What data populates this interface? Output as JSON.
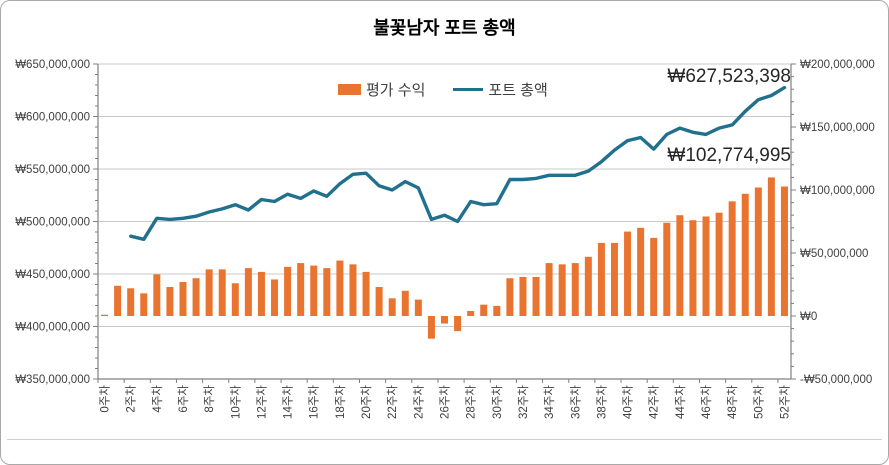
{
  "window": {
    "title": "불꽃남자 포트 총액"
  },
  "chart_data": {
    "type": "combo",
    "title": "불꽃남자 포트 총액",
    "legend": {
      "position": "top-inside",
      "entries": [
        "평가 수익",
        "포트 총액"
      ]
    },
    "colors": {
      "bar": "#E97430",
      "line": "#21708E",
      "gridline": "#c8c8c8",
      "axis": "#808080",
      "tick_label": "#404040"
    },
    "x_unit": "주차",
    "weeks": "0-52",
    "x_tick_labels": [
      "0주차",
      "2주차",
      "4주차",
      "6주차",
      "8주차",
      "10주차",
      "12주차",
      "14주차",
      "16주차",
      "18주차",
      "20주차",
      "22주차",
      "24주차",
      "26주차",
      "28주차",
      "30주차",
      "32주차",
      "34주차",
      "36주차",
      "38주차",
      "40주차",
      "42주차",
      "44주차",
      "46주차",
      "48주차",
      "50주차",
      "52주차"
    ],
    "left_axis": {
      "min": 350000000,
      "max": 650000000,
      "step": 50000000,
      "labels": [
        "₩350,000,000",
        "₩400,000,000",
        "₩450,000,000",
        "₩500,000,000",
        "₩550,000,000",
        "₩600,000,000",
        "₩650,000,000"
      ]
    },
    "right_axis": {
      "min": -50000000,
      "max": 200000000,
      "step": 50000000,
      "labels": [
        "-₩50,000,000",
        "₩0",
        "₩50,000,000",
        "₩100,000,000",
        "₩150,000,000",
        "₩200,000,000"
      ]
    },
    "series": [
      {
        "name": "평가 수익",
        "type": "bar",
        "axis": "right",
        "start_week": 0,
        "values": [
          1000000,
          24000000,
          22000000,
          18000000,
          33000000,
          23000000,
          27000000,
          30000000,
          37000000,
          37000000,
          26000000,
          38000000,
          35000000,
          29000000,
          39000000,
          42000000,
          40000000,
          38000000,
          44000000,
          41000000,
          35000000,
          23000000,
          14000000,
          20000000,
          13000000,
          -18000000,
          -6000000,
          -12000000,
          4000000,
          9000000,
          8000000,
          30000000,
          31000000,
          31000000,
          42000000,
          41000000,
          42000000,
          47000000,
          58000000,
          58000000,
          67000000,
          70000000,
          62000000,
          74000000,
          80000000,
          76000000,
          79000000,
          82000000,
          91000000,
          97000000,
          102000000,
          110000000,
          102774995
        ]
      },
      {
        "name": "포트 총액",
        "type": "line",
        "axis": "left",
        "start_week": 2,
        "values": [
          486000000,
          483000000,
          503000000,
          502000000,
          503000000,
          505000000,
          509000000,
          512000000,
          516000000,
          511000000,
          521000000,
          519000000,
          526000000,
          522000000,
          529000000,
          524000000,
          536000000,
          545000000,
          546000000,
          534000000,
          530000000,
          538000000,
          532000000,
          502000000,
          506000000,
          500000000,
          519000000,
          516000000,
          517000000,
          540000000,
          540000000,
          541000000,
          544000000,
          544000000,
          544000000,
          548000000,
          557000000,
          568000000,
          577000000,
          580000000,
          569000000,
          583000000,
          589000000,
          585000000,
          583000000,
          589000000,
          592000000,
          605000000,
          616000000,
          620000000,
          627523398
        ]
      }
    ],
    "annotations": [
      {
        "text": "₩627,523,398",
        "series": "포트 총액",
        "week": 52
      },
      {
        "text": "₩102,774,995",
        "series": "평가 수익",
        "week": 52
      }
    ]
  }
}
